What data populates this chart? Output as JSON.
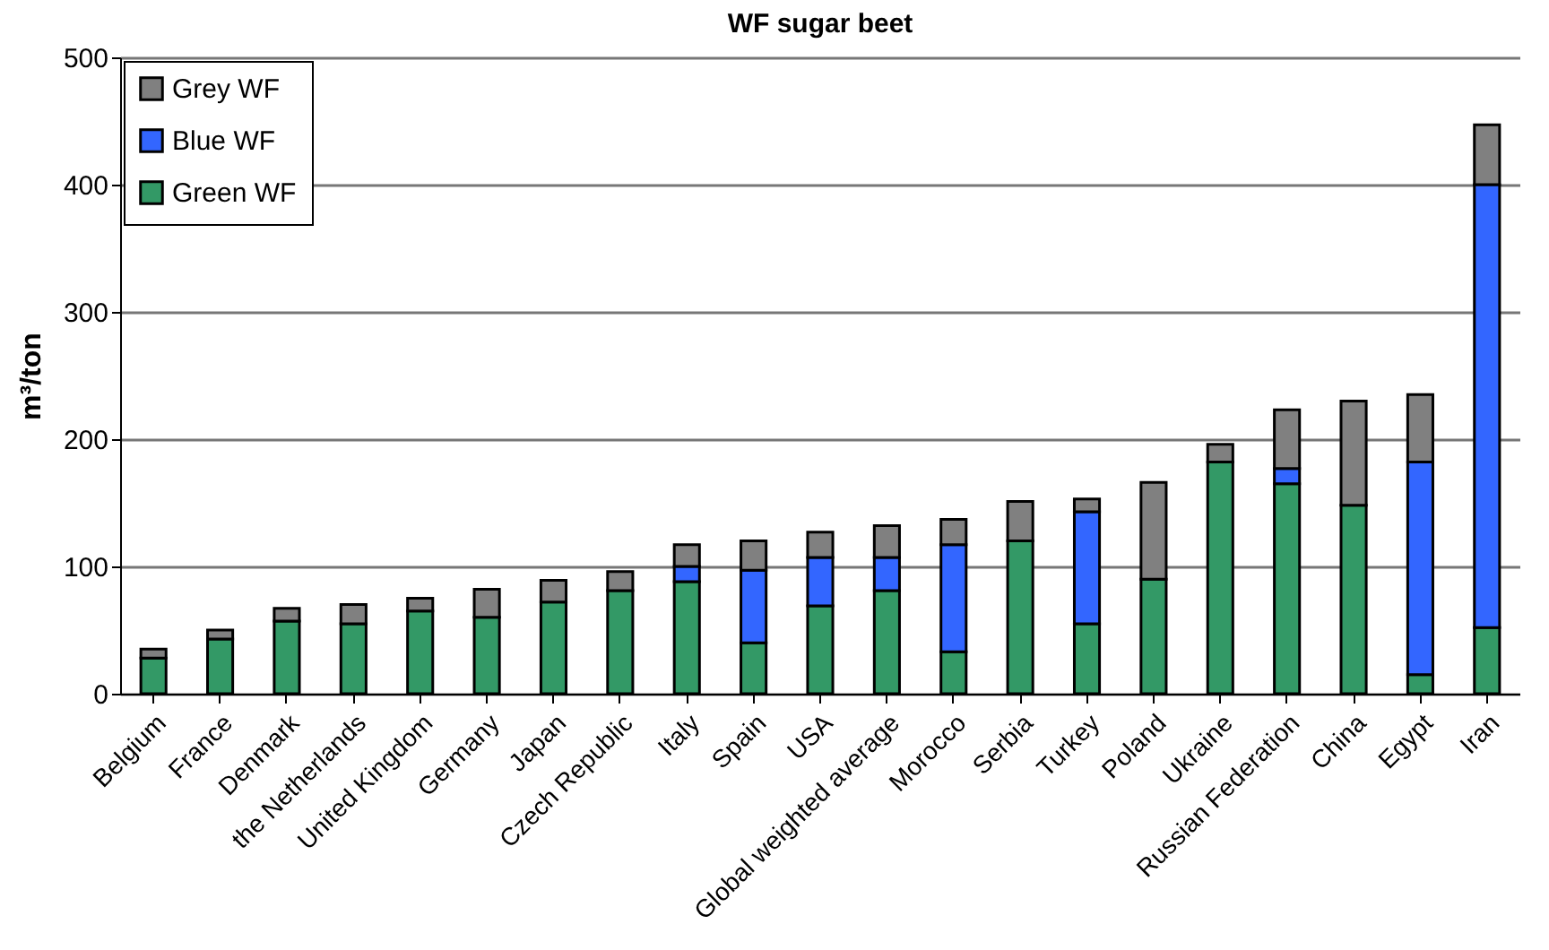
{
  "chart_data": {
    "type": "bar",
    "title": "WF sugar beet",
    "ylabel": "m³/ton",
    "stacked": true,
    "grid": "y",
    "legend": "top left",
    "categories": [
      "Belgium",
      "France",
      "Denmark",
      "the Netherlands",
      "United Kingdom",
      "Germany",
      "Japan",
      "Czech Republic",
      "Italy",
      "Spain",
      "USA",
      "Global weighted average",
      "Morocco",
      "Serbia",
      "Turkey",
      "Poland",
      "Ukraine",
      "Russian Federation",
      "China",
      "Egypt",
      "Iran"
    ],
    "ylim": [
      0,
      500
    ],
    "yticks": [
      0,
      100,
      200,
      300,
      400,
      500
    ],
    "series": [
      {
        "name": "Green WF",
        "color": "#339966",
        "values": [
          28,
          43,
          57,
          55,
          65,
          60,
          72,
          81,
          88,
          40,
          69,
          81,
          33,
          120,
          55,
          90,
          182,
          165,
          148,
          15,
          52
        ]
      },
      {
        "name": "Blue WF",
        "color": "#3366ff",
        "values": [
          null,
          null,
          null,
          null,
          null,
          null,
          null,
          null,
          12,
          57,
          38,
          26,
          84,
          null,
          88,
          null,
          null,
          12,
          null,
          167,
          348
        ]
      },
      {
        "name": "Grey WF",
        "color": "#808080",
        "values": [
          7,
          7,
          10,
          15,
          10,
          22,
          17,
          15,
          17,
          23,
          20,
          25,
          20,
          31,
          10,
          76,
          14,
          46,
          82,
          53,
          47
        ]
      }
    ]
  }
}
